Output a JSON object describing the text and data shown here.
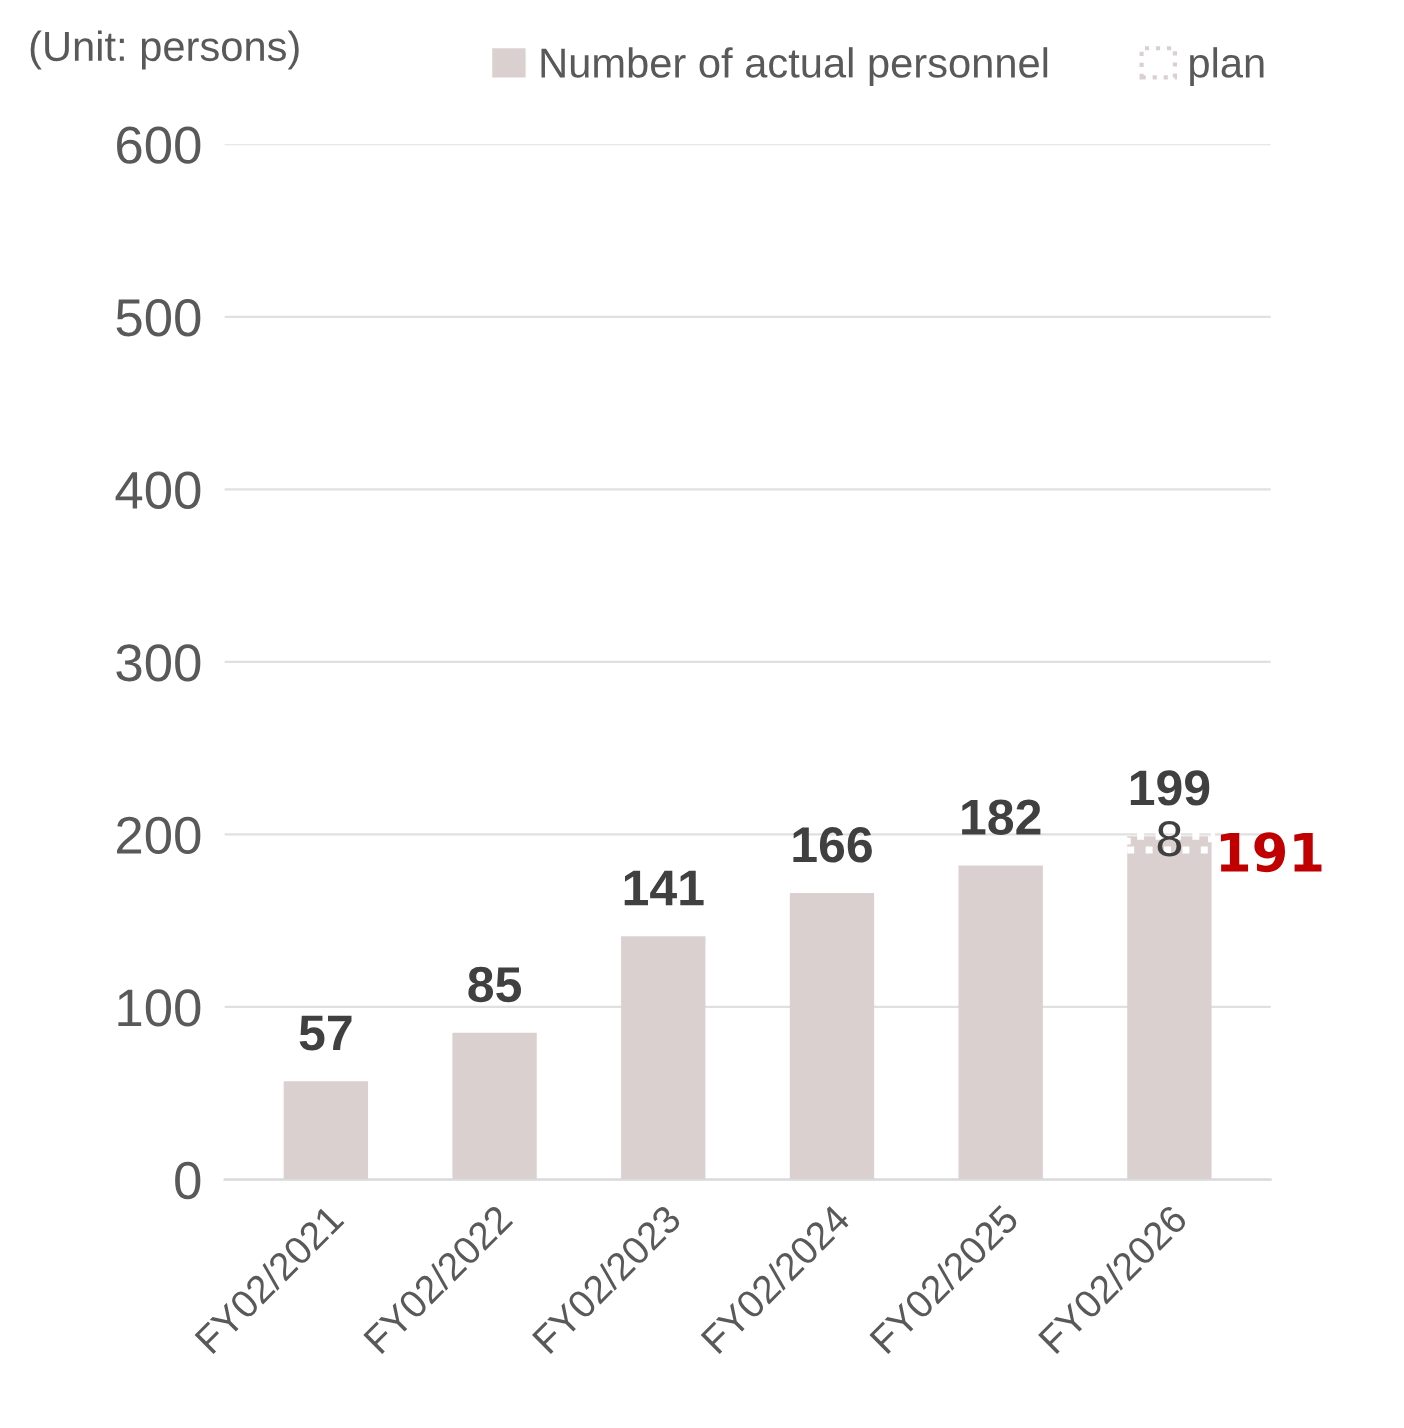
{
  "chart_data": {
    "type": "bar",
    "stacked": true,
    "annotations": [
      "(Unit: persons)",
      {
        "text": "191",
        "x": "FY02/2026",
        "y": 191
      }
    ],
    "categories": [
      "FY02/2021",
      "FY02/2022",
      "FY02/2023",
      "FY02/2024",
      "FY02/2025",
      "FY02/2026"
    ],
    "series": [
      {
        "name": "Number of actual personnel",
        "color": "#dbd0d0",
        "values": [
          57,
          85,
          141,
          166,
          182,
          191
        ]
      },
      {
        "name": "plan",
        "color": "#dbd0d0",
        "values": [
          null,
          null,
          null,
          null,
          null,
          8
        ],
        "value_labels": [
          null,
          null,
          null,
          null,
          null,
          "8"
        ]
      }
    ],
    "totals": [
      "57",
      "85",
      "141",
      "166",
      "182",
      "199"
    ],
    "ylim": [
      0,
      600
    ],
    "yticks": [
      0,
      100,
      200,
      300,
      400,
      500,
      600
    ],
    "grid": "y",
    "legend": "top"
  }
}
